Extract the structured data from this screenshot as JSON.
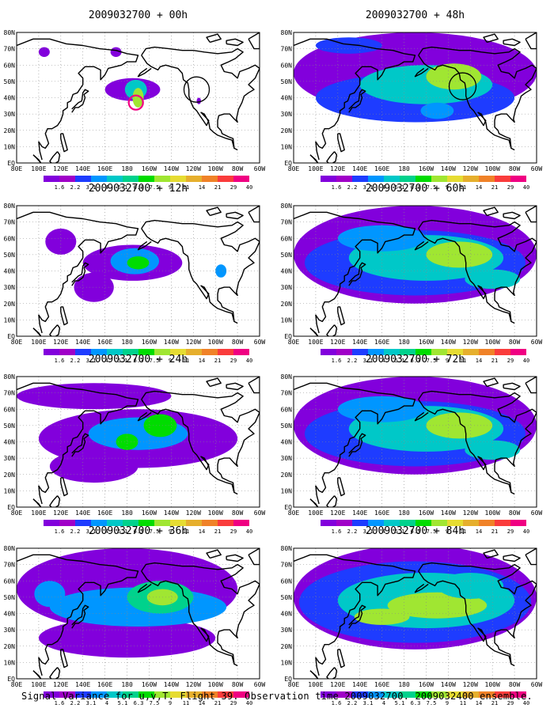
{
  "caption": "Signal Variance for u,v,T. Flight 39. Observation time 2009032700. 2009032400 ensemble.",
  "map": {
    "lon_labels": [
      "80E",
      "100E",
      "120E",
      "140E",
      "160E",
      "180",
      "160W",
      "140W",
      "120W",
      "100W",
      "80W",
      "60W"
    ],
    "lat_labels": [
      "80N",
      "70N",
      "60N",
      "50N",
      "40N",
      "30N",
      "20N",
      "10N",
      "EQ"
    ],
    "lon_range": [
      80,
      300
    ],
    "lat_range": [
      0,
      80
    ]
  },
  "colorbar": {
    "labels": [
      "1.6",
      "2.2",
      "3.1",
      "4",
      "5.1",
      "6.3",
      "7.5",
      "9",
      "11",
      "14",
      "21",
      "29",
      "40"
    ],
    "colors": [
      "#8200dc",
      "#a000c8",
      "#1e3cff",
      "#0096ff",
      "#00c8c8",
      "#00d28c",
      "#00dc00",
      "#a0e632",
      "#e6dc32",
      "#e6af2d",
      "#f08228",
      "#fa3c3c",
      "#f00082"
    ]
  },
  "panels": [
    {
      "title": "2009032700 + 00h",
      "level": 0
    },
    {
      "title": "2009032700 + 48h",
      "level": 5
    },
    {
      "title": "2009032700 + 12h",
      "level": 1
    },
    {
      "title": "2009032700 + 60h",
      "level": 6
    },
    {
      "title": "2009032700 + 24h",
      "level": 3
    },
    {
      "title": "2009032700 + 72h",
      "level": 6
    },
    {
      "title": "2009032700 + 36h",
      "level": 4
    },
    {
      "title": "2009032700 + 84h",
      "level": 7
    }
  ]
}
